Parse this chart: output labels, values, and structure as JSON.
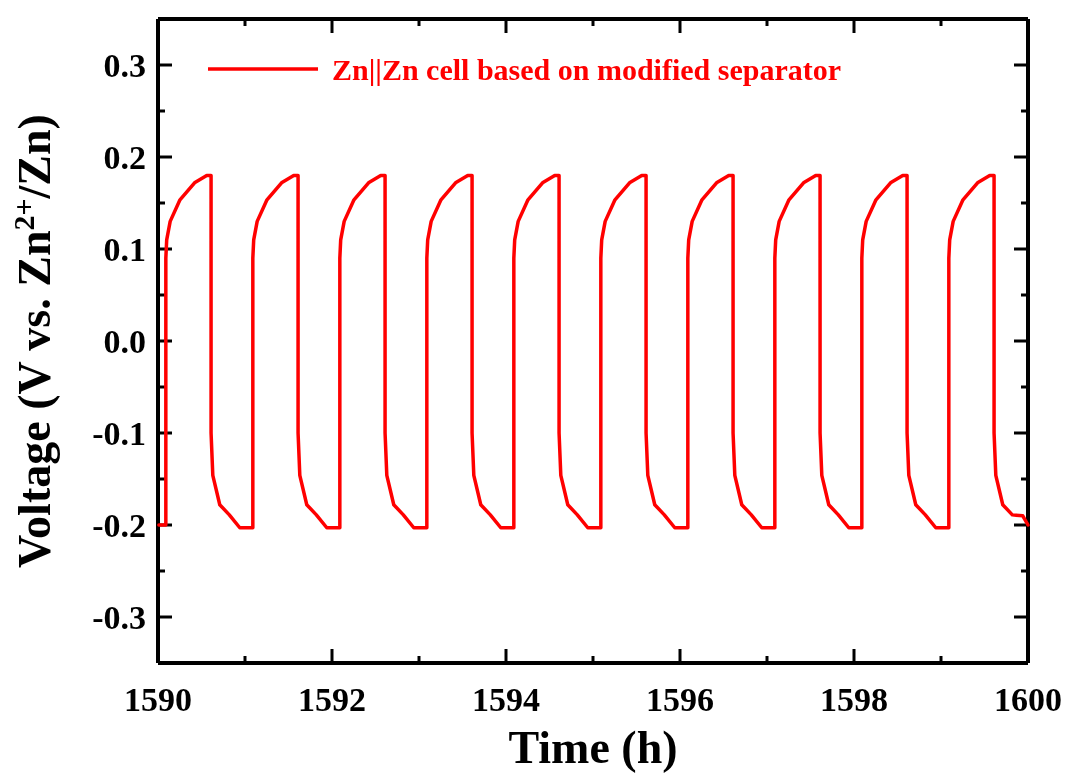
{
  "chart_data": {
    "type": "line",
    "xlabel": "Time (h)",
    "ylabel": "Voltage (V vs. Zn$^{2+}$/Zn)",
    "xlim": [
      1590,
      1600
    ],
    "ylim": [
      -0.35,
      0.35
    ],
    "xticks": [
      1590,
      {
        "value": 1591,
        "label": null
      },
      1592,
      {
        "value": 1593,
        "label": null
      },
      1594,
      {
        "value": 1595,
        "label": null
      },
      1596,
      {
        "value": 1597,
        "label": null
      },
      1598,
      {
        "value": 1599,
        "label": null
      },
      1600
    ],
    "yticks": [
      {
        "value": -0.35,
        "label": null
      },
      -0.3,
      {
        "value": -0.25,
        "label": null
      },
      -0.2,
      {
        "value": -0.15,
        "label": null
      },
      -0.1,
      {
        "value": -0.05,
        "label": null
      },
      {
        "value": 0,
        "label": "0.0"
      },
      {
        "value": 0.05,
        "label": null
      },
      0.1,
      {
        "value": 0.15,
        "label": null
      },
      0.2,
      {
        "value": 0.25,
        "label": null
      },
      0.3,
      {
        "value": 0.35,
        "label": null
      }
    ],
    "legend": "top left",
    "marker": "none",
    "line_style": "solid",
    "grid": false,
    "x": [
      1590.01,
      1590.09,
      1590.09,
      1590.1,
      1590.14,
      1590.25,
      1590.42,
      1590.56,
      1590.61,
      1590.61,
      1590.63,
      1590.71,
      1590.82,
      1590.94,
      1591.09,
      1591.09,
      1591.1,
      1591.14,
      1591.25,
      1591.42,
      1591.56,
      1591.61,
      1591.61,
      1591.63,
      1591.71,
      1591.82,
      1591.94,
      1592.09,
      1592.09,
      1592.1,
      1592.14,
      1592.25,
      1592.42,
      1592.56,
      1592.61,
      1592.61,
      1592.63,
      1592.71,
      1592.82,
      1592.94,
      1593.09,
      1593.09,
      1593.1,
      1593.14,
      1593.25,
      1593.42,
      1593.56,
      1593.61,
      1593.61,
      1593.63,
      1593.71,
      1593.82,
      1593.94,
      1594.09,
      1594.09,
      1594.1,
      1594.14,
      1594.25,
      1594.42,
      1594.56,
      1594.61,
      1594.61,
      1594.63,
      1594.71,
      1594.82,
      1594.94,
      1595.09,
      1595.09,
      1595.1,
      1595.14,
      1595.25,
      1595.42,
      1595.56,
      1595.61,
      1595.61,
      1595.63,
      1595.71,
      1595.82,
      1595.94,
      1596.09,
      1596.09,
      1596.1,
      1596.14,
      1596.25,
      1596.42,
      1596.56,
      1596.61,
      1596.61,
      1596.63,
      1596.71,
      1596.82,
      1596.94,
      1597.09,
      1597.09,
      1597.1,
      1597.14,
      1597.25,
      1597.42,
      1597.56,
      1597.61,
      1597.61,
      1597.63,
      1597.71,
      1597.82,
      1597.94,
      1598.09,
      1598.09,
      1598.1,
      1598.14,
      1598.25,
      1598.42,
      1598.56,
      1598.61,
      1598.61,
      1598.63,
      1598.71,
      1598.82,
      1598.94,
      1599.09,
      1599.09,
      1599.1,
      1599.14,
      1599.25,
      1599.42,
      1599.56,
      1599.61,
      1599.61,
      1599.63,
      1599.71,
      1599.82,
      1599.94,
      1600
    ],
    "series": [
      {
        "name": "Zn||Zn cell based on modified separator",
        "color": "#ff0000",
        "values": [
          -0.2,
          -0.2,
          0.09,
          0.11,
          0.13,
          0.153,
          0.172,
          0.18,
          0.18,
          -0.1,
          -0.146,
          -0.178,
          -0.189,
          -0.203,
          -0.203,
          0.09,
          0.11,
          0.13,
          0.153,
          0.172,
          0.18,
          0.18,
          -0.1,
          -0.146,
          -0.178,
          -0.189,
          -0.203,
          -0.203,
          0.09,
          0.11,
          0.13,
          0.153,
          0.172,
          0.18,
          0.18,
          -0.1,
          -0.146,
          -0.178,
          -0.189,
          -0.203,
          -0.203,
          0.09,
          0.11,
          0.13,
          0.153,
          0.172,
          0.18,
          0.18,
          -0.1,
          -0.146,
          -0.178,
          -0.189,
          -0.203,
          -0.203,
          0.09,
          0.11,
          0.13,
          0.153,
          0.172,
          0.18,
          0.18,
          -0.1,
          -0.146,
          -0.178,
          -0.189,
          -0.203,
          -0.203,
          0.09,
          0.11,
          0.13,
          0.153,
          0.172,
          0.18,
          0.18,
          -0.1,
          -0.146,
          -0.178,
          -0.189,
          -0.203,
          -0.203,
          0.09,
          0.11,
          0.13,
          0.153,
          0.172,
          0.18,
          0.18,
          -0.1,
          -0.146,
          -0.178,
          -0.189,
          -0.203,
          -0.203,
          0.09,
          0.11,
          0.13,
          0.153,
          0.172,
          0.18,
          0.18,
          -0.1,
          -0.146,
          -0.178,
          -0.189,
          -0.203,
          -0.203,
          0.09,
          0.11,
          0.13,
          0.153,
          0.172,
          0.18,
          0.18,
          -0.1,
          -0.146,
          -0.178,
          -0.189,
          -0.203,
          -0.203,
          0.09,
          0.11,
          0.13,
          0.153,
          0.172,
          0.18,
          0.18,
          -0.1,
          -0.146,
          -0.178,
          -0.189,
          -0.19,
          -0.2
        ]
      }
    ]
  }
}
